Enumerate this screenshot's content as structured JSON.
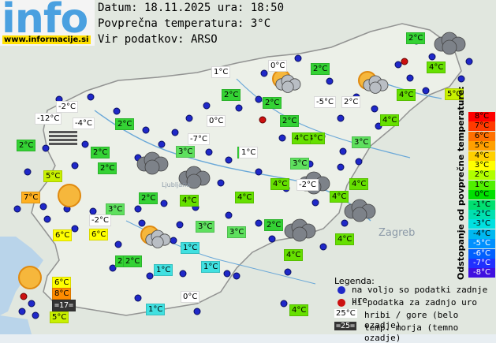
{
  "header": {
    "date_line": "Datum: 18.11.2025 ura: 18:50",
    "avg_temp_line": "Povprečna temperatura: 3°C",
    "source_line": "Vir podatkov: ARSO"
  },
  "logo": {
    "text": "info",
    "url": "www.informacije.si"
  },
  "map_labels": {
    "zagreb": "Zagreb",
    "ljubljana": "Ljubljana"
  },
  "colors": {
    "land": "#dfe6d8",
    "sea": "#b9d4ea",
    "dot_ok": "#1f28c8",
    "dot_missing": "#cc1010",
    "t_neg12": "#ffffff",
    "t_neg7": "#ffffff",
    "t_neg5": "#ffffff",
    "t_neg4": "#ffffff",
    "t_neg2": "#ffffff",
    "t_0": "#ffffff",
    "t_1": "#40e0e0",
    "t_2": "#3ed23e",
    "t_3": "#5ee05e",
    "t_4": "#66e000",
    "t_5": "#c8f000",
    "t_6": "#ffff00",
    "t_7": "#ffb020",
    "t_8": "#ff8c00"
  },
  "stations": [
    {
      "t": "-2°C",
      "kind": "hill",
      "c": "#ffffff"
    },
    {
      "t": "-12°C",
      "kind": "hill",
      "c": "#ffffff"
    },
    {
      "t": "-4°C",
      "kind": "hill",
      "c": "#ffffff"
    },
    {
      "t": "2°C",
      "kind": "low",
      "c": "#34d234"
    },
    {
      "t": "2°C",
      "kind": "low",
      "c": "#34d234"
    },
    {
      "t": "2°C",
      "kind": "low",
      "c": "#34d234"
    },
    {
      "t": "2°C",
      "kind": "low",
      "c": "#34d234"
    },
    {
      "t": "5°C",
      "kind": "low",
      "c": "#c8f000"
    },
    {
      "t": "7°C",
      "kind": "low",
      "c": "#ffb020"
    },
    {
      "t": "3°C",
      "kind": "low",
      "c": "#5ee05e"
    },
    {
      "t": "-2°C",
      "kind": "hill",
      "c": "#ffffff"
    },
    {
      "t": "6°C",
      "kind": "low",
      "c": "#ffff00"
    },
    {
      "t": "6°C",
      "kind": "low",
      "c": "#ffff00"
    },
    {
      "t": "2°C",
      "kind": "low",
      "c": "#34d234"
    },
    {
      "t": "0°C",
      "kind": "hill",
      "c": "#ffffff"
    },
    {
      "t": "-7°C",
      "kind": "hill",
      "c": "#ffffff"
    },
    {
      "t": "3°C",
      "kind": "low",
      "c": "#5ee05e"
    },
    {
      "t": "2°C",
      "kind": "low",
      "c": "#34d234"
    },
    {
      "t": "4°C",
      "kind": "low",
      "c": "#66e000"
    },
    {
      "t": "2°C",
      "kind": "low",
      "c": "#34d234"
    },
    {
      "t": "1°C",
      "kind": "hill",
      "c": "#ffffff"
    },
    {
      "t": "2°C",
      "kind": "low",
      "c": "#34d234"
    },
    {
      "t": "2°C",
      "kind": "low",
      "c": "#34d234"
    },
    {
      "t": "2°C",
      "kind": "low",
      "c": "#34d234"
    },
    {
      "t": "0°C",
      "kind": "hill",
      "c": "#ffffff"
    },
    {
      "t": "2°C",
      "kind": "low",
      "c": "#34d234"
    },
    {
      "t": "-5°C",
      "kind": "hill",
      "c": "#ffffff"
    },
    {
      "t": "2°C",
      "kind": "hill",
      "c": "#ffffff"
    },
    {
      "t": "4°C",
      "kind": "low",
      "c": "#66e000"
    },
    {
      "t": "4°C",
      "kind": "low",
      "c": "#66e000"
    },
    {
      "t": "2°C",
      "kind": "low",
      "c": "#34d234"
    },
    {
      "t": "4°C",
      "kind": "low",
      "c": "#66e000"
    },
    {
      "t": "4°C",
      "kind": "low",
      "c": "#66e000"
    },
    {
      "t": "5°C",
      "kind": "low",
      "c": "#c8f000"
    },
    {
      "t": "4°C",
      "kind": "low",
      "c": "#66e000"
    },
    {
      "t": "4°C",
      "kind": "low",
      "c": "#66e000"
    },
    {
      "t": "3°C",
      "kind": "low",
      "c": "#5ee05e"
    },
    {
      "t": "1°C",
      "kind": "hill",
      "c": "#ffffff"
    },
    {
      "t": "3°C",
      "kind": "low",
      "c": "#5ee05e"
    },
    {
      "t": "4°C",
      "kind": "low",
      "c": "#66e000"
    },
    {
      "t": "-2°C",
      "kind": "hill",
      "c": "#ffffff"
    },
    {
      "t": "4°C",
      "kind": "low",
      "c": "#66e000"
    },
    {
      "t": "4°C",
      "kind": "low",
      "c": "#66e000"
    },
    {
      "t": "4°C",
      "kind": "low",
      "c": "#66e000"
    },
    {
      "t": "3°C",
      "kind": "low",
      "c": "#5ee05e"
    },
    {
      "t": "2°C",
      "kind": "low",
      "c": "#34d234"
    },
    {
      "t": "3°C",
      "kind": "low",
      "c": "#5ee05e"
    },
    {
      "t": "4°C",
      "kind": "low",
      "c": "#66e000"
    },
    {
      "t": "4°C",
      "kind": "low",
      "c": "#66e000"
    },
    {
      "t": "1°C",
      "kind": "low",
      "c": "#40e0e0"
    },
    {
      "t": "1°C",
      "kind": "low",
      "c": "#40e0e0"
    },
    {
      "t": "1°C",
      "kind": "low",
      "c": "#40e0e0"
    },
    {
      "t": "2°C",
      "kind": "low",
      "c": "#34d234"
    },
    {
      "t": "0°C",
      "kind": "hill",
      "c": "#ffffff"
    },
    {
      "t": "1°C",
      "kind": "low",
      "c": "#40e0e0"
    },
    {
      "t": "4°C",
      "kind": "low",
      "c": "#66e000"
    },
    {
      "t": "6°C",
      "kind": "low",
      "c": "#ffff00"
    },
    {
      "t": "8°C",
      "kind": "low",
      "c": "#ff8c00"
    },
    {
      "t": "=17=",
      "kind": "sea",
      "c": "#333333"
    },
    {
      "t": "5°C",
      "kind": "low",
      "c": "#c8f000"
    }
  ],
  "legend": {
    "title": "Legenda:",
    "dot_ok": "na voljo so podatki zadnje ure",
    "dot_missing": "ni podatka za zadnjo uro",
    "hill_sample": "25°C",
    "hill_text": "hribi / gore (belo ozadje)",
    "sea_sample": "=25=",
    "sea_text": "temp. morja (temno ozadje)"
  },
  "scale": {
    "title": "Odstopanje od povprečne temperature:",
    "steps": [
      {
        "label": "8°C",
        "c": "#ff0000"
      },
      {
        "label": "7°C",
        "c": "#ff3a00"
      },
      {
        "label": "6°C",
        "c": "#ff7000"
      },
      {
        "label": "5°C",
        "c": "#ffa000"
      },
      {
        "label": "4°C",
        "c": "#ffd000"
      },
      {
        "label": "3°C",
        "c": "#ffff00"
      },
      {
        "label": "2°C",
        "c": "#b0ff00"
      },
      {
        "label": "1°C",
        "c": "#50f000"
      },
      {
        "label": "0°C",
        "c": "#00e000"
      },
      {
        "label": "-1°C",
        "c": "#00e070"
      },
      {
        "label": "-2°C",
        "c": "#00e0b0"
      },
      {
        "label": "-3°C",
        "c": "#00e0e0"
      },
      {
        "label": "-4°C",
        "c": "#00b8f0"
      },
      {
        "label": "-5°C",
        "c": "#0090ff"
      },
      {
        "label": "-6°C",
        "c": "#0060ff"
      },
      {
        "label": "-7°C",
        "c": "#2030ff"
      },
      {
        "label": "-8°C",
        "c": "#4010e0"
      }
    ]
  },
  "icons": [
    "sun-icon",
    "cloud-icon",
    "partly-cloudy-icon",
    "fog-icon"
  ]
}
